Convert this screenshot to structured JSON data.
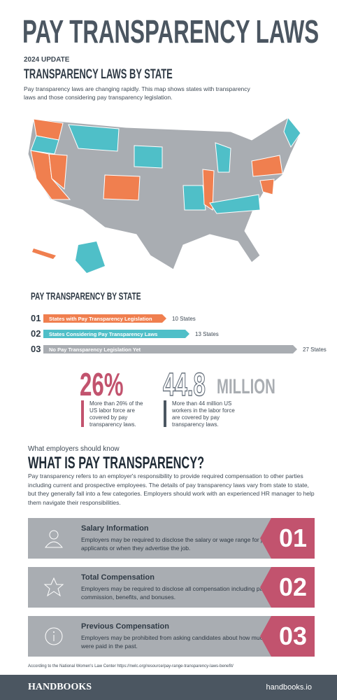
{
  "header": {
    "title": "PAY TRANSPARENCY LAWS",
    "update": "2024 UPDATE",
    "section_title": "TRANSPARENCY LAWS BY STATE",
    "intro": "Pay transparency laws are changing rapidly.  This map shows states with transparency laws and those considering pay transparency legislation."
  },
  "bars": {
    "title": "PAY TRANSPARENCY BY STATE",
    "items": [
      {
        "index": "01",
        "label": "States with Pay Transparency Legislation",
        "value": 10,
        "value_label": "10 States",
        "color": "#f07f4f"
      },
      {
        "index": "02",
        "label": "States Considering Pay Transparency Laws",
        "value": 13,
        "value_label": "13 States",
        "color": "#4fbfc8"
      },
      {
        "index": "03",
        "label": "No Pay Transparency Legislation Yet",
        "value": 27,
        "value_label": "27 States",
        "color": "#a9adb2"
      }
    ]
  },
  "stats": [
    {
      "big": "26%",
      "text": "More than 26% of the US labor force are covered by pay transparency laws."
    },
    {
      "big": "44.8",
      "unit": "MILLION",
      "text": "More than 44 million US workers in the labor force are covered by pay transparency laws."
    }
  ],
  "what": {
    "kicker": "What employers should know",
    "title": "WHAT IS PAY TRANSPARENCY?",
    "body": "Pay transparency refers to an employer's responsibility to provide required compensation to other parties including current and prospective employees.  The details of pay transparency laws vary from state to state, but they generally fall into a few categories.   Employers should work with an experienced HR manager to help them navigate their responsibilities."
  },
  "cards": [
    {
      "title": "Salary Information",
      "text": "Employers may be required to disclose the salary or wage range for jobs to applicants or when they advertise the job.",
      "number": "01"
    },
    {
      "title": "Total Compensation",
      "text": "Employers may be required to disclose all compensation including pay, sales commission, benefits, and bonuses.",
      "number": "02"
    },
    {
      "title": "Previous Compensation",
      "text": "Employers may be prohibited from asking candidates about how much they were paid in the past.",
      "number": "03"
    }
  ],
  "footer": {
    "source": "According to the National Women's Law Center  https://nwlc.org/resource/pay-range-transparency-laws-benefit/",
    "brand": "HANDBOOKS",
    "url": "handbooks.io"
  }
}
